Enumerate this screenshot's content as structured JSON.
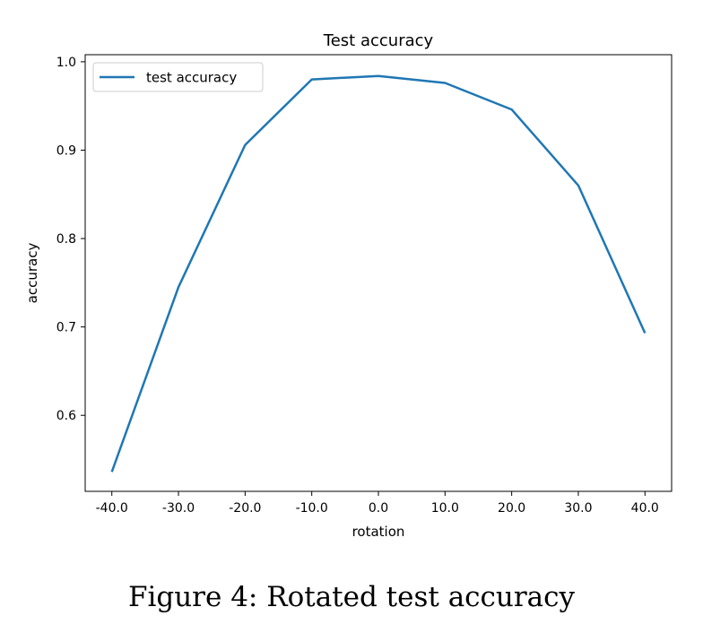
{
  "caption": "Figure 4: Rotated test accuracy",
  "colors": {
    "series": "#1f77b4"
  },
  "chart_data": {
    "type": "line",
    "title": "Test accuracy",
    "xlabel": "rotation",
    "ylabel": "accuracy",
    "x_tick_labels": [
      "-40.0",
      "-30.0",
      "-20.0",
      "-10.0",
      "0.0",
      "10.0",
      "20.0",
      "30.0",
      "40.0"
    ],
    "y_tick_labels": [
      "0.6",
      "0.7",
      "0.8",
      "0.9",
      "1.0"
    ],
    "y_ticks": [
      0.6,
      0.7,
      0.8,
      0.9,
      1.0
    ],
    "xlim": [
      -44,
      44
    ],
    "ylim": [
      0.514,
      1.008
    ],
    "legend": {
      "placement": "upper-left"
    },
    "grid": false,
    "series": [
      {
        "name": "test accuracy",
        "x": [
          -40,
          -30,
          -20,
          -10,
          0,
          10,
          20,
          30,
          40
        ],
        "values": [
          0.536,
          0.745,
          0.906,
          0.98,
          0.984,
          0.976,
          0.946,
          0.86,
          0.693
        ]
      }
    ]
  }
}
